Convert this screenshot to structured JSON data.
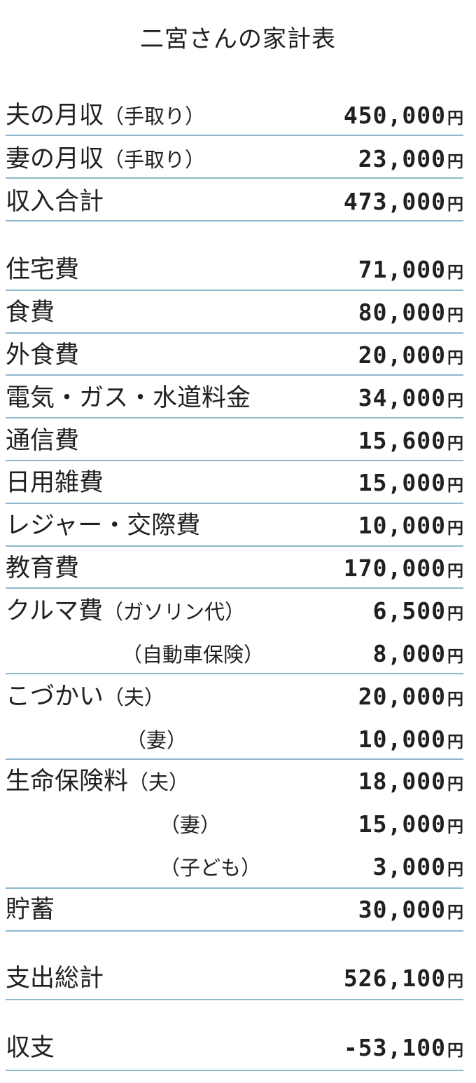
{
  "title": "二宮さんの家計表",
  "unit": "円",
  "line_color": "#8fb8cc",
  "rows": [
    {
      "label": "夫の月収",
      "sub": "（手取り）",
      "amount": "450,000"
    },
    {
      "label": "妻の月収",
      "sub": "（手取り）",
      "amount": "23,000"
    },
    {
      "label": "収入合計",
      "sub": "",
      "amount": "473,000"
    },
    {
      "label": "住宅費",
      "sub": "",
      "amount": "71,000"
    },
    {
      "label": "食費",
      "sub": "",
      "amount": "80,000"
    },
    {
      "label": "外食費",
      "sub": "",
      "amount": "20,000"
    },
    {
      "label": "電気・ガス・水道料金",
      "sub": "",
      "amount": "34,000"
    },
    {
      "label": "通信費",
      "sub": "",
      "amount": "15,600"
    },
    {
      "label": "日用雑費",
      "sub": "",
      "amount": "15,000"
    },
    {
      "label": "レジャー・交際費",
      "sub": "",
      "amount": "10,000"
    },
    {
      "label": "教育費",
      "sub": "",
      "amount": "170,000"
    },
    {
      "label": "クルマ費",
      "sub": "（ガソリン代）",
      "amount": "6,500"
    },
    {
      "label": "",
      "sub": "（自動車保険）",
      "amount": "8,000"
    },
    {
      "label": "こづかい",
      "sub": "（夫）",
      "amount": "20,000"
    },
    {
      "label": "",
      "sub": "（妻）",
      "amount": "10,000"
    },
    {
      "label": "生命保険料",
      "sub": "（夫）",
      "amount": "18,000"
    },
    {
      "label": "",
      "sub": "（妻）",
      "amount": "15,000"
    },
    {
      "label": "",
      "sub": "（子ども）",
      "amount": "3,000"
    },
    {
      "label": "貯蓄",
      "sub": "",
      "amount": "30,000"
    },
    {
      "label": "支出総計",
      "sub": "",
      "amount": "526,100"
    },
    {
      "label": "収支",
      "sub": "",
      "amount": "-53,100"
    }
  ]
}
